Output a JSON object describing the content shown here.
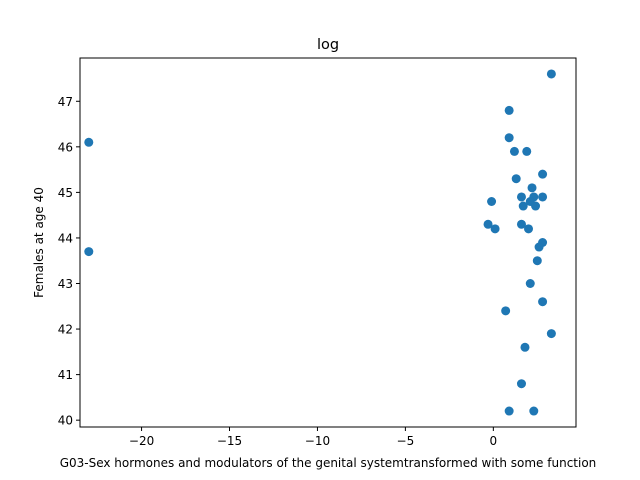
{
  "chart_data": {
    "type": "scatter",
    "title": "log",
    "xlabel": "G03-Sex hormones and modulators of the genital systemtransformed with some function",
    "ylabel": "Females at age 40",
    "xlim": [
      -23.5,
      4.7
    ],
    "ylim": [
      39.85,
      47.95
    ],
    "xticks": [
      -20,
      -15,
      -10,
      -5,
      0
    ],
    "xtick_labels": [
      "−20",
      "−15",
      "−10",
      "−5",
      "0"
    ],
    "yticks": [
      40,
      41,
      42,
      43,
      44,
      45,
      46,
      47
    ],
    "ytick_labels": [
      "40",
      "41",
      "42",
      "43",
      "44",
      "45",
      "46",
      "47"
    ],
    "grid": false,
    "marker_color": "#1f77b4",
    "points": [
      {
        "x": -23.0,
        "y": 46.1
      },
      {
        "x": -23.0,
        "y": 43.7
      },
      {
        "x": 3.3,
        "y": 47.6
      },
      {
        "x": 0.9,
        "y": 46.8
      },
      {
        "x": 0.9,
        "y": 46.2
      },
      {
        "x": 1.2,
        "y": 45.9
      },
      {
        "x": 1.9,
        "y": 45.9
      },
      {
        "x": 2.8,
        "y": 45.4
      },
      {
        "x": 1.3,
        "y": 45.3
      },
      {
        "x": 2.2,
        "y": 45.1
      },
      {
        "x": 1.6,
        "y": 44.9
      },
      {
        "x": 2.3,
        "y": 44.9
      },
      {
        "x": 2.8,
        "y": 44.9
      },
      {
        "x": 2.1,
        "y": 44.8
      },
      {
        "x": -0.1,
        "y": 44.8
      },
      {
        "x": 1.7,
        "y": 44.7
      },
      {
        "x": 2.4,
        "y": 44.7
      },
      {
        "x": -0.3,
        "y": 44.3
      },
      {
        "x": 1.6,
        "y": 44.3
      },
      {
        "x": 0.1,
        "y": 44.2
      },
      {
        "x": 2.0,
        "y": 44.2
      },
      {
        "x": 2.8,
        "y": 43.9
      },
      {
        "x": 2.6,
        "y": 43.8
      },
      {
        "x": 2.5,
        "y": 43.5
      },
      {
        "x": 2.1,
        "y": 43.0
      },
      {
        "x": 2.8,
        "y": 42.6
      },
      {
        "x": 0.7,
        "y": 42.4
      },
      {
        "x": 3.3,
        "y": 41.9
      },
      {
        "x": 1.8,
        "y": 41.6
      },
      {
        "x": 1.6,
        "y": 40.8
      },
      {
        "x": 0.9,
        "y": 40.2
      },
      {
        "x": 2.3,
        "y": 40.2
      }
    ]
  }
}
